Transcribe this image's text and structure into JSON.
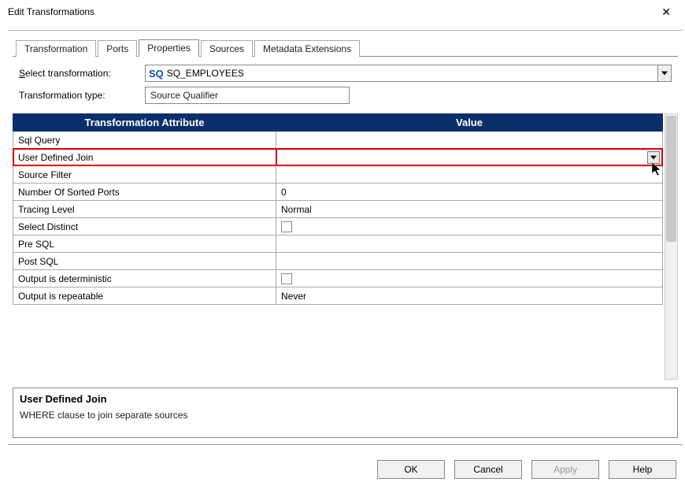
{
  "window": {
    "title": "Edit Transformations",
    "close_glyph": "✕"
  },
  "tabs": [
    {
      "label": "Transformation",
      "active": false
    },
    {
      "label": "Ports",
      "active": false
    },
    {
      "label": "Properties",
      "active": true
    },
    {
      "label": "Sources",
      "active": false
    },
    {
      "label": "Metadata Extensions",
      "active": false
    }
  ],
  "select_transform": {
    "label_prefix": "S",
    "label_rest": "elect transformation:",
    "badge": "SQ",
    "value": "SQ_EMPLOYEES"
  },
  "transform_type": {
    "label": "Transformation type:",
    "value": "Source Qualifier"
  },
  "grid": {
    "header_left": "Transformation Attribute",
    "header_right": "Value",
    "header_bg": "#0a2f6b",
    "rows": [
      {
        "attr": "Sql Query",
        "value": "",
        "type": "text",
        "highlight": false
      },
      {
        "attr": "User Defined Join",
        "value": "",
        "type": "dropdown",
        "highlight": true
      },
      {
        "attr": "Source Filter",
        "value": "",
        "type": "text",
        "highlight": false
      },
      {
        "attr": "Number Of Sorted Ports",
        "value": "0",
        "type": "text",
        "highlight": false
      },
      {
        "attr": "Tracing Level",
        "value": "Normal",
        "type": "text",
        "highlight": false
      },
      {
        "attr": "Select Distinct",
        "value": "",
        "type": "checkbox",
        "highlight": false
      },
      {
        "attr": "Pre SQL",
        "value": "",
        "type": "text",
        "highlight": false
      },
      {
        "attr": "Post SQL",
        "value": "",
        "type": "text",
        "highlight": false
      },
      {
        "attr": "Output is deterministic",
        "value": "",
        "type": "checkbox",
        "highlight": false
      },
      {
        "attr": "Output is repeatable",
        "value": "Never",
        "type": "text",
        "highlight": false
      }
    ]
  },
  "description": {
    "title": "User Defined Join",
    "text": "WHERE clause to join separate sources"
  },
  "buttons": {
    "ok": "OK",
    "cancel": "Cancel",
    "apply": "Apply",
    "help": "Help"
  }
}
